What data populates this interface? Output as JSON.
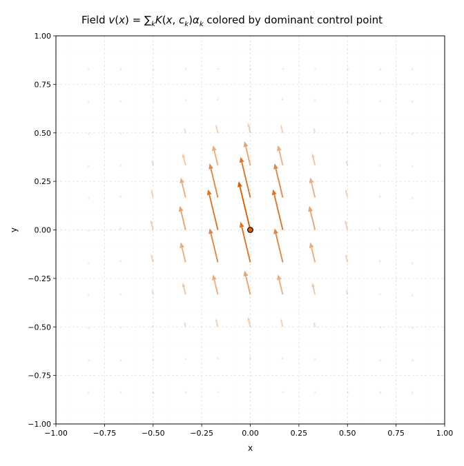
{
  "chart_data": {
    "type": "quiver",
    "title": "Field v(x) = ∑ₖ K(x, cₖ)αₖ colored by dominant control point",
    "xlabel": "x",
    "ylabel": "y",
    "xlim": [
      -1.0,
      1.0
    ],
    "ylim": [
      -1.0,
      1.0
    ],
    "xticks": [
      "−1.00",
      "−0.75",
      "−0.50",
      "−0.25",
      "0.00",
      "0.25",
      "0.50",
      "0.75",
      "1.00"
    ],
    "yticks": [
      "1.00",
      "0.75",
      "0.50",
      "0.25",
      "0.00",
      "−0.25",
      "−0.50",
      "−0.75",
      "−1.00"
    ],
    "grid": true,
    "arrow_color": "#d95f02",
    "control_point": {
      "x": 0.0,
      "y": 0.0,
      "color": "#d95f02"
    },
    "alpha_vector": [
      -0.06,
      0.25
    ],
    "kernel_sigma": 0.28,
    "grid_x": [
      -0.833,
      -0.667,
      -0.5,
      -0.333,
      -0.167,
      0.0,
      0.167,
      0.333,
      0.5,
      0.667,
      0.833
    ],
    "grid_y": [
      0.833,
      0.667,
      0.5,
      0.333,
      0.167,
      0.0,
      -0.167,
      -0.333,
      -0.5,
      -0.667,
      -0.833
    ]
  }
}
